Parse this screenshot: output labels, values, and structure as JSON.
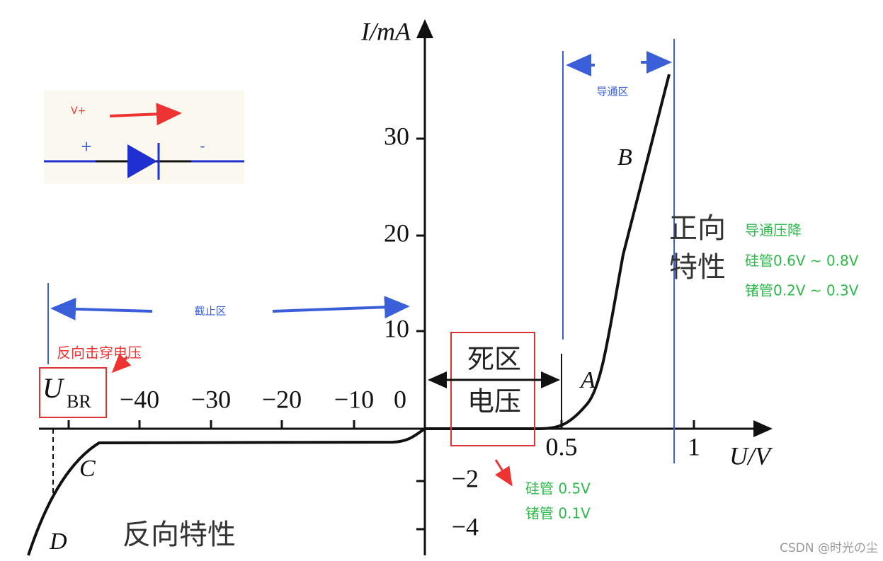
{
  "axes": {
    "y_label": "I/mA",
    "x_label": "U/V",
    "y_ticks": [
      "30",
      "20",
      "10",
      "−2",
      "−4"
    ],
    "x_ticks_negative": [
      "−40",
      "−30",
      "−20",
      "−10",
      "0"
    ],
    "x_ticks_positive": [
      "0.5",
      "1"
    ]
  },
  "points": {
    "A": "A",
    "B": "B",
    "C": "C",
    "D": "D",
    "ubr_main": "U",
    "ubr_sub": "BR"
  },
  "regions": {
    "conduction": "导通区",
    "cutoff": "截止区",
    "forward": [
      "正向",
      "特性"
    ],
    "reverse": "反向特性",
    "dead_zone": [
      "死区",
      "电压"
    ]
  },
  "notes": {
    "breakdown": "反向击穿电压",
    "drop_title": "导通压降",
    "drop_si": "硅管0.6V ~ 0.8V",
    "drop_ge": "锗管0.2V ~ 0.3V",
    "dead_si": "硅管 0.5V",
    "dead_ge": "锗管 0.1V"
  },
  "inset": {
    "voltage": "V+",
    "plus": "+",
    "minus": "-"
  },
  "watermark": "CSDN @时光の尘"
}
